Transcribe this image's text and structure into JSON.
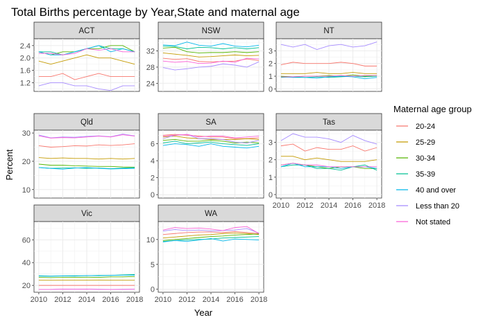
{
  "chart_data": {
    "type": "line",
    "title": "Total Births percentage by Year,State and maternal age",
    "xlabel": "Year",
    "ylabel": "Percent",
    "x": [
      2010,
      2011,
      2012,
      2013,
      2014,
      2015,
      2016,
      2017,
      2018
    ],
    "x_ticks": [
      "2010",
      "2012",
      "2014",
      "2016",
      "2018"
    ],
    "grid": true,
    "legend": {
      "title": "Maternal age group",
      "placement": "right",
      "entries": [
        {
          "name": "20-24",
          "color": "#F8766D"
        },
        {
          "name": "25-29",
          "color": "#C49A00"
        },
        {
          "name": "30-34",
          "color": "#53B400"
        },
        {
          "name": "35-39",
          "color": "#00C094"
        },
        {
          "name": "40 and over",
          "color": "#00B6EB"
        },
        {
          "name": "Less than 20",
          "color": "#A58AFF"
        },
        {
          "name": "Not stated",
          "color": "#FB61D7"
        }
      ]
    },
    "panels": [
      {
        "state": "ACT",
        "ylim": [
          0.92,
          2.62
        ],
        "yticks": [
          "1.2",
          "1.6",
          "2.0",
          "2.4"
        ],
        "ytick_values": [
          1.2,
          1.6,
          2.0,
          2.4
        ],
        "series": [
          {
            "name": "20-24",
            "values": [
              1.4,
              1.4,
              1.5,
              1.3,
              1.4,
              1.5,
              1.4,
              1.4,
              1.4
            ]
          },
          {
            "name": "25-29",
            "values": [
              1.9,
              1.8,
              1.9,
              2.0,
              2.1,
              2.0,
              2.0,
              1.9,
              1.8
            ]
          },
          {
            "name": "30-34",
            "values": [
              2.2,
              2.1,
              2.2,
              2.2,
              2.3,
              2.3,
              2.4,
              2.4,
              2.2
            ]
          },
          {
            "name": "35-39",
            "values": [
              2.2,
              2.2,
              2.1,
              2.2,
              2.3,
              2.4,
              2.3,
              2.3,
              2.2
            ]
          },
          {
            "name": "40 and over",
            "values": [
              2.2,
              2.1,
              2.1,
              2.2,
              2.3,
              2.4,
              2.2,
              2.3,
              2.2
            ]
          },
          {
            "name": "Less than 20",
            "values": [
              1.1,
              1.2,
              1.2,
              1.1,
              1.1,
              1.0,
              0.95,
              1.1,
              1.1
            ]
          },
          {
            "name": "Not stated",
            "values": [
              2.15,
              2.15,
              2.1,
              2.15,
              2.3,
              2.25,
              2.3,
              2.2,
              2.2
            ]
          }
        ]
      },
      {
        "state": "NSW",
        "ylim": [
          22.0,
          35.0
        ],
        "yticks": [
          "24",
          "28",
          "32"
        ],
        "ytick_values": [
          24,
          28,
          32
        ],
        "series": [
          {
            "name": "20-24",
            "values": [
              30.2,
              29.9,
              30.1,
              29.4,
              29.3,
              29.4,
              29.5,
              30.0,
              29.6
            ]
          },
          {
            "name": "25-29",
            "values": [
              31.5,
              31.2,
              30.9,
              30.5,
              30.6,
              30.8,
              31.0,
              30.8,
              30.9
            ]
          },
          {
            "name": "30-34",
            "values": [
              32.7,
              32.9,
              31.8,
              31.5,
              31.6,
              31.6,
              31.8,
              31.6,
              31.8
            ]
          },
          {
            "name": "35-39",
            "values": [
              33.2,
              33.1,
              32.5,
              32.9,
              32.8,
              32.5,
              32.8,
              32.5,
              32.8
            ]
          },
          {
            "name": "40 and over",
            "values": [
              33.5,
              33.3,
              34.2,
              33.4,
              33.2,
              33.8,
              33.2,
              33.0,
              33.4
            ]
          },
          {
            "name": "Less than 20",
            "values": [
              27.9,
              27.3,
              27.6,
              28.0,
              28.2,
              28.8,
              28.5,
              28.0,
              29.3
            ]
          },
          {
            "name": "Not stated",
            "values": [
              29.5,
              29.2,
              29.4,
              28.9,
              29.0,
              29.5,
              29.2,
              30.2,
              30.0
            ]
          }
        ]
      },
      {
        "state": "NT",
        "ylim": [
          -0.2,
          3.95
        ],
        "yticks": [
          "0",
          "1",
          "2",
          "3"
        ],
        "ytick_values": [
          0,
          1,
          2,
          3
        ],
        "series": [
          {
            "name": "20-24",
            "values": [
              1.9,
              2.1,
              2.0,
              2.0,
              2.0,
              2.1,
              2.0,
              1.8,
              1.8
            ]
          },
          {
            "name": "25-29",
            "values": [
              1.2,
              1.2,
              1.2,
              1.3,
              1.2,
              1.2,
              1.3,
              1.2,
              1.2
            ]
          },
          {
            "name": "30-34",
            "values": [
              1.0,
              0.95,
              1.0,
              1.0,
              1.05,
              1.0,
              1.1,
              1.0,
              1.05
            ]
          },
          {
            "name": "35-39",
            "values": [
              0.9,
              0.95,
              0.9,
              0.95,
              0.9,
              0.95,
              1.0,
              0.95,
              1.0
            ]
          },
          {
            "name": "40 and over",
            "values": [
              0.95,
              0.9,
              0.9,
              0.85,
              0.95,
              1.0,
              0.95,
              0.8,
              0.9
            ]
          },
          {
            "name": "Less than 20",
            "values": [
              3.5,
              3.3,
              3.5,
              3.1,
              3.4,
              3.5,
              3.3,
              3.4,
              3.7
            ]
          },
          {
            "name": "Not stated",
            "values": [
              0.95,
              0.95,
              1.0,
              1.0,
              1.0,
              1.05,
              1.0,
              1.05,
              1.05
            ]
          }
        ]
      },
      {
        "state": "Qld",
        "ylim": [
          7.0,
          31.0
        ],
        "yticks": [
          "10",
          "20",
          "30"
        ],
        "ytick_values": [
          10,
          20,
          30
        ],
        "series": [
          {
            "name": "20-24",
            "values": [
              25.5,
              25.0,
              25.2,
              25.5,
              25.4,
              25.8,
              25.6,
              25.8,
              26.2
            ]
          },
          {
            "name": "25-29",
            "values": [
              21.3,
              21.0,
              21.2,
              21.0,
              21.0,
              20.8,
              21.0,
              20.8,
              21.0
            ]
          },
          {
            "name": "30-34",
            "values": [
              19.0,
              18.6,
              18.6,
              18.4,
              18.3,
              18.2,
              18.2,
              18.0,
              17.9
            ]
          },
          {
            "name": "35-39",
            "values": [
              17.8,
              17.5,
              17.6,
              17.7,
              17.5,
              17.6,
              17.4,
              17.6,
              17.8
            ]
          },
          {
            "name": "40 and over",
            "values": [
              17.8,
              17.5,
              17.2,
              17.6,
              17.8,
              17.5,
              17.3,
              17.4,
              17.5
            ]
          },
          {
            "name": "Less than 20",
            "values": [
              29.3,
              28.3,
              28.6,
              28.5,
              28.8,
              29.0,
              28.7,
              29.6,
              29.0
            ]
          },
          {
            "name": "Not stated",
            "values": [
              29.0,
              28.2,
              28.4,
              28.3,
              28.6,
              28.9,
              28.6,
              29.4,
              28.9
            ]
          }
        ]
      },
      {
        "state": "SA",
        "ylim": [
          -0.4,
          7.6
        ],
        "yticks": [
          "0",
          "2",
          "4",
          "6"
        ],
        "ytick_values": [
          0,
          2,
          4,
          6
        ],
        "series": [
          {
            "name": "20-24",
            "values": [
              7.0,
              7.1,
              7.0,
              6.9,
              6.8,
              6.8,
              6.6,
              6.6,
              6.7
            ]
          },
          {
            "name": "25-29",
            "values": [
              6.8,
              6.9,
              6.7,
              6.6,
              6.5,
              6.5,
              6.5,
              6.6,
              6.5
            ]
          },
          {
            "name": "30-34",
            "values": [
              6.4,
              6.5,
              6.3,
              6.3,
              6.4,
              6.3,
              6.1,
              6.2,
              6.1
            ]
          },
          {
            "name": "35-39",
            "values": [
              6.1,
              6.3,
              6.0,
              6.1,
              6.2,
              6.0,
              5.9,
              5.8,
              6.0
            ]
          },
          {
            "name": "40 and over",
            "values": [
              5.8,
              6.0,
              5.9,
              5.7,
              6.0,
              5.7,
              5.6,
              5.5,
              5.7
            ]
          },
          {
            "name": "Less than 20",
            "values": [
              6.6,
              7.0,
              7.1,
              6.6,
              6.6,
              6.5,
              6.2,
              6.1,
              6.4
            ]
          },
          {
            "name": "Not stated",
            "values": [
              6.9,
              7.0,
              7.1,
              6.8,
              6.9,
              6.9,
              6.7,
              6.8,
              6.9
            ]
          }
        ]
      },
      {
        "state": "Tas",
        "ylim": [
          -0.2,
          3.7
        ],
        "yticks": [
          "0",
          "1",
          "2",
          "3"
        ],
        "ytick_values": [
          0,
          1,
          2,
          3
        ],
        "series": [
          {
            "name": "20-24",
            "values": [
              2.8,
              2.9,
              2.5,
              2.7,
              2.6,
              2.6,
              2.8,
              2.5,
              2.7
            ]
          },
          {
            "name": "25-29",
            "values": [
              2.2,
              2.2,
              2.0,
              2.1,
              2.0,
              1.9,
              1.9,
              1.9,
              2.0
            ]
          },
          {
            "name": "30-34",
            "values": [
              1.7,
              1.8,
              1.7,
              1.6,
              1.5,
              1.6,
              1.6,
              1.5,
              1.5
            ]
          },
          {
            "name": "35-39",
            "values": [
              1.6,
              1.7,
              1.7,
              1.5,
              1.5,
              1.4,
              1.6,
              1.7,
              1.4
            ]
          },
          {
            "name": "40 and over",
            "values": [
              1.6,
              1.8,
              1.6,
              1.6,
              1.6,
              1.5,
              1.6,
              1.6,
              1.5
            ]
          },
          {
            "name": "Less than 20",
            "values": [
              3.1,
              3.5,
              3.3,
              3.3,
              3.2,
              3.0,
              3.4,
              3.1,
              2.9
            ]
          },
          {
            "name": "Not stated",
            "values": [
              1.7,
              1.8,
              1.7,
              1.7,
              1.6,
              1.6,
              1.6,
              1.6,
              1.6
            ]
          }
        ]
      },
      {
        "state": "Vic",
        "ylim": [
          14.0,
          76.0
        ],
        "yticks": [
          "20",
          "40",
          "60"
        ],
        "ytick_values": [
          20,
          40,
          60
        ],
        "series": [
          {
            "name": "20-24",
            "values": [
              20.0,
              20.0,
              20.0,
              20.0,
              20.0,
              20.0,
              20.0,
              20.0,
              20.0
            ]
          },
          {
            "name": "25-29",
            "values": [
              24.5,
              24.5,
              24.5,
              24.5,
              24.5,
              24.6,
              24.5,
              24.5,
              24.5
            ]
          },
          {
            "name": "30-34",
            "values": [
              27.0,
              26.8,
              27.0,
              27.0,
              27.2,
              27.0,
              27.5,
              27.5,
              27.8
            ]
          },
          {
            "name": "35-39",
            "values": [
              28.5,
              28.2,
              28.4,
              28.5,
              28.5,
              28.8,
              28.8,
              29.2,
              29.5
            ]
          },
          {
            "name": "40 and over",
            "values": [
              28.2,
              28.0,
              28.3,
              28.2,
              28.6,
              28.5,
              28.8,
              29.0,
              29.0
            ]
          },
          {
            "name": "Less than 20",
            "values": [
              16.5,
              16.5,
              16.8,
              16.7,
              16.8,
              16.6,
              16.5,
              16.6,
              16.7
            ]
          },
          {
            "name": "Not stated",
            "values": [
              16.5,
              16.5,
              16.7,
              16.6,
              16.7,
              16.5,
              16.4,
              16.5,
              16.6
            ]
          }
        ]
      },
      {
        "state": "WA",
        "ylim": [
          -0.6,
          13.6
        ],
        "yticks": [
          "0",
          "5",
          "10"
        ],
        "ytick_values": [
          0,
          5,
          10
        ],
        "series": [
          {
            "name": "20-24",
            "values": [
              11.0,
              11.2,
              11.4,
              11.5,
              11.5,
              11.4,
              11.6,
              11.4,
              11.2
            ]
          },
          {
            "name": "25-29",
            "values": [
              10.3,
              10.5,
              10.7,
              10.9,
              11.0,
              11.2,
              11.3,
              11.2,
              11.0
            ]
          },
          {
            "name": "30-34",
            "values": [
              9.8,
              10.0,
              10.2,
              10.4,
              10.6,
              10.7,
              10.9,
              11.0,
              11.1
            ]
          },
          {
            "name": "35-39",
            "values": [
              9.6,
              9.8,
              9.9,
              10.0,
              10.1,
              10.3,
              10.4,
              10.5,
              10.6
            ]
          },
          {
            "name": "40 and over",
            "values": [
              9.5,
              9.8,
              9.6,
              9.9,
              10.2,
              9.7,
              10.1,
              10.0,
              9.9
            ]
          },
          {
            "name": "Less than 20",
            "values": [
              11.7,
              12.0,
              11.8,
              11.9,
              11.7,
              11.8,
              11.9,
              12.2,
              11.3
            ]
          },
          {
            "name": "Not stated",
            "values": [
              11.9,
              12.4,
              12.2,
              12.3,
              12.1,
              11.8,
              12.4,
              12.6,
              11.2
            ]
          }
        ]
      }
    ]
  }
}
